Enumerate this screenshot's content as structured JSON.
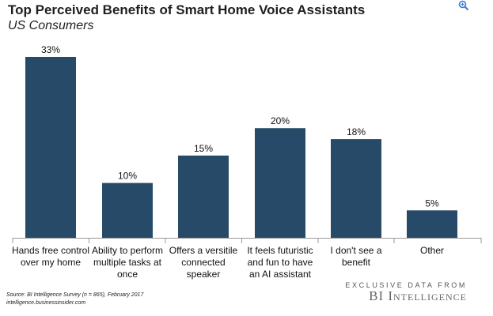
{
  "chart_data": {
    "type": "bar",
    "title": "Top Perceived Benefits of Smart Home Voice Assistants",
    "subtitle": "US Consumers",
    "categories": [
      [
        "Hands free control",
        "over my home"
      ],
      [
        "Ability to perform",
        "multiple tasks at",
        "once"
      ],
      [
        "Offers a versitile",
        "connected",
        "speaker"
      ],
      [
        "It feels futuristic",
        "and fun to have",
        "an AI assistant"
      ],
      [
        "I don't see a",
        "benefit"
      ],
      [
        "Other"
      ]
    ],
    "values": [
      33,
      10,
      15,
      20,
      18,
      5
    ],
    "value_labels": [
      "33%",
      "10%",
      "15%",
      "20%",
      "18%",
      "5%"
    ],
    "unit": "%",
    "ylim": [
      0,
      33
    ],
    "bar_color": "#274a68",
    "grid": false
  },
  "source": {
    "line1": "Source: BI Intelligence Survey (n = 865), February 2017",
    "line2": "intelligence.businessinsider.com"
  },
  "branding": {
    "tagline": "EXCLUSIVE DATA FROM",
    "name": "BI Intelligence"
  },
  "icons": {
    "zoom": "zoom-in-icon"
  }
}
